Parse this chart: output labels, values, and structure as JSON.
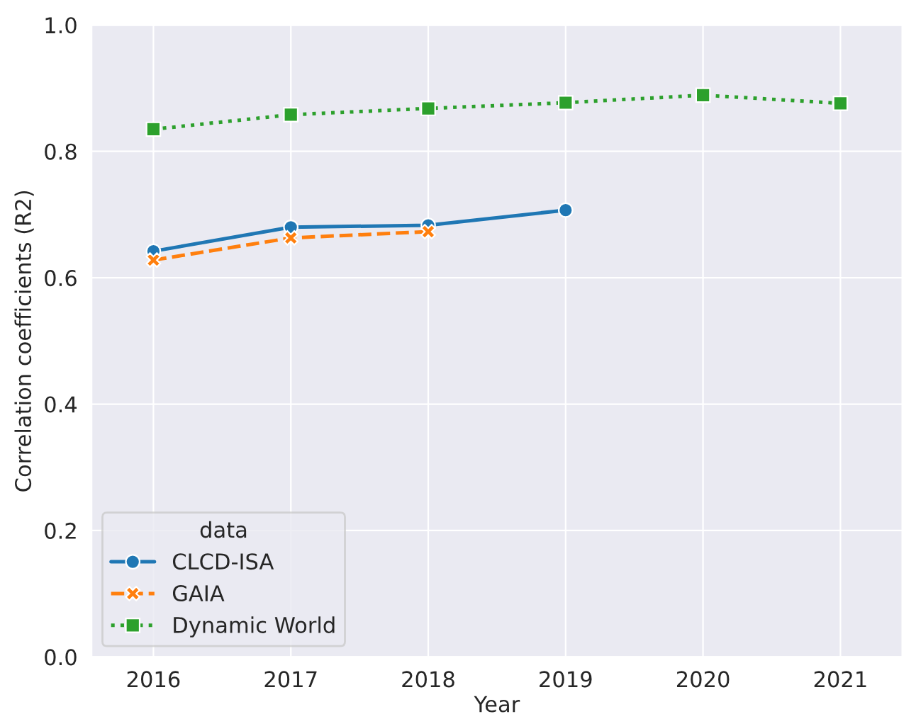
{
  "chart_data": {
    "type": "line",
    "xlabel": "Year",
    "ylabel": "Correlation coefficients (R2)",
    "legend_title": "data",
    "legend": "bottom left",
    "grid": true,
    "x": [
      2016,
      2017,
      2018,
      2019,
      2020,
      2021
    ],
    "xlim": [
      2015.55,
      2021.45
    ],
    "xticks": [
      2016,
      2017,
      2018,
      2019,
      2020,
      2021
    ],
    "ylim": [
      0,
      1.0
    ],
    "yticks": [
      {
        "value": 0,
        "label": "0.0"
      },
      0.2,
      0.4,
      0.6,
      0.8,
      {
        "value": 1.0,
        "label": "1.0"
      }
    ],
    "series": [
      {
        "name": "CLCD-ISA",
        "color": "#1f77b4",
        "marker": "circle",
        "line_style": "solid",
        "values": [
          0.642,
          0.68,
          0.683,
          0.707,
          null,
          null
        ]
      },
      {
        "name": "GAIA",
        "color": "#ff7f0e",
        "marker": "cross",
        "line_style": "dashed",
        "values": [
          0.628,
          0.663,
          0.673,
          null,
          null,
          null
        ]
      },
      {
        "name": "Dynamic World",
        "color": "#2ca02c",
        "marker": "square",
        "line_style": "dotted",
        "values": [
          0.835,
          0.858,
          0.868,
          0.877,
          0.889,
          0.876
        ]
      }
    ]
  }
}
